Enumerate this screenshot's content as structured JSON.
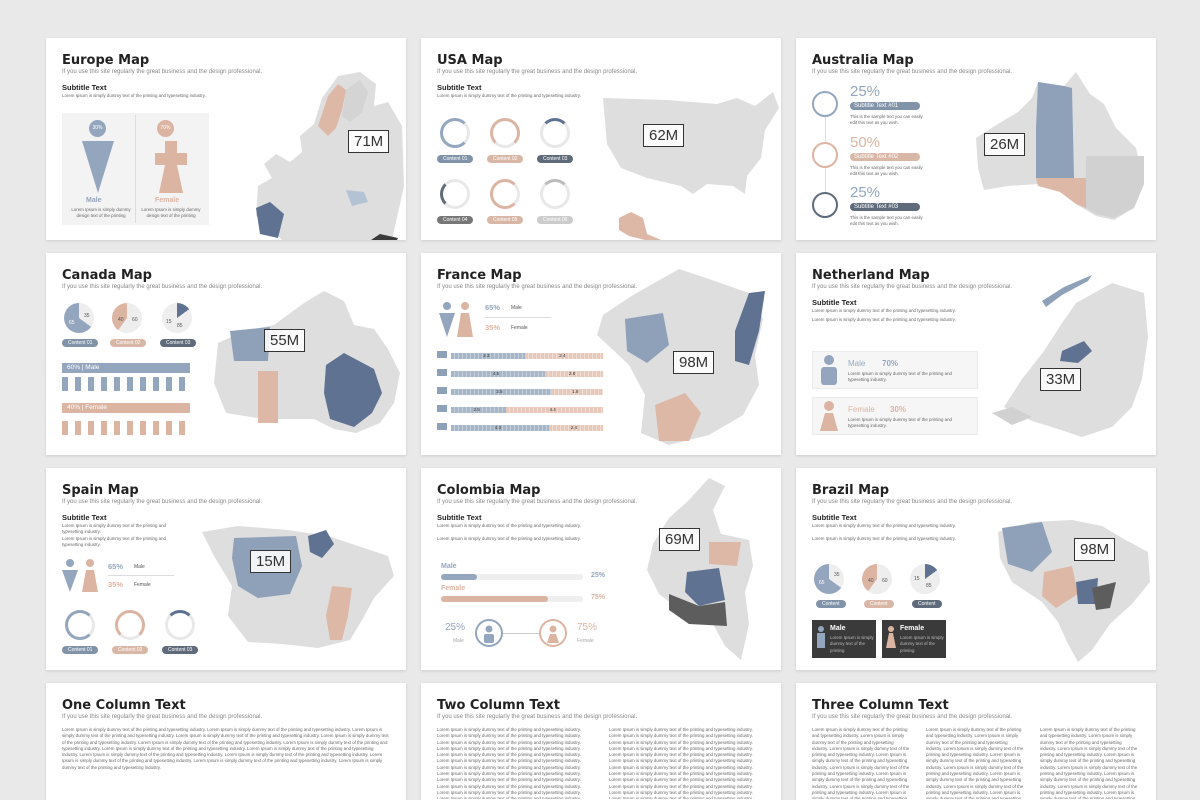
{
  "common": {
    "subtitle": "If you use this site regularly the great business and the design professional.",
    "subtitle_text": "Subtitle Text",
    "lorem": "Lorem Ipsum is simply dummy text of the printing and typesetting industry.",
    "lorem_short": "Lorem Ipsum is simply dummy text of the printing"
  },
  "colors": {
    "blue": "#8ea1b9",
    "rose": "#ddb8a6",
    "navy": "#5f7291",
    "gray": "#dedede",
    "dark": "#3a3a3a"
  },
  "slides": {
    "europe": {
      "title": "Europe Map",
      "value": "71M",
      "male_pct": "30%",
      "female_pct": "70%",
      "male": "Male",
      "female": "Female",
      "desc": "Lorem Ipsum is simply dummy design text of the printing"
    },
    "usa": {
      "title": "USA Map",
      "value": "62M",
      "labels": [
        "Content 01",
        "Content 02",
        "Content 03",
        "Content 04",
        "Content 05",
        "Content 06"
      ]
    },
    "australia": {
      "title": "Australia Map",
      "value": "26M",
      "items": [
        {
          "pct": "25%",
          "label": "Subtitle Text #01"
        },
        {
          "pct": "50%",
          "label": "Subtitle Text #02"
        },
        {
          "pct": "25%",
          "label": "Subtitle Text #03"
        }
      ],
      "note": "This is the sample text you can easily edit this text as you wish."
    },
    "canada": {
      "title": "Canada Map",
      "value": "55M",
      "pies": [
        {
          "a": "65",
          "b": "35",
          "label": "Content 01"
        },
        {
          "a": "60",
          "b": "40",
          "label": "Content 02"
        },
        {
          "a": "85",
          "b": "15",
          "label": "Content 03"
        }
      ],
      "male_row": "60% | Male",
      "female_row": "40% | Female"
    },
    "france": {
      "title": "France Map",
      "value": "98M",
      "male_pct": "65%",
      "female_pct": "35%",
      "male": "Male",
      "female": "Female",
      "bars": [
        {
          "a": "2.3",
          "b": "2.4"
        },
        {
          "a": "4.5",
          "b": "2.8"
        },
        {
          "a": "3.5",
          "b": "1.8"
        },
        {
          "a": "2.5",
          "b": "4.4"
        },
        {
          "a": "4.3",
          "b": "2.4"
        }
      ]
    },
    "netherland": {
      "title": "Netherland Map",
      "value": "33M",
      "male": "Male",
      "male_pct": "70%",
      "female": "Female",
      "female_pct": "30%"
    },
    "spain": {
      "title": "Spain Map",
      "value": "15M",
      "male_pct": "65%",
      "female_pct": "35%",
      "male": "Male",
      "female": "Female",
      "labels": [
        "Content 01",
        "Content 02",
        "Content 03"
      ]
    },
    "colombia": {
      "title": "Colombia Map",
      "value": "69M",
      "male": "Male",
      "female": "Female",
      "male_pct": "25%",
      "female_pct": "75%"
    },
    "brazil": {
      "title": "Brazil Map",
      "value": "98M",
      "pies": [
        {
          "a": "65",
          "b": "35",
          "label": "Content"
        },
        {
          "a": "40",
          "b": "60",
          "label": "Content"
        },
        {
          "a": "15",
          "b": "85",
          "label": "Content"
        }
      ],
      "male": "Male",
      "female": "Female"
    },
    "one_col": {
      "title": "One Column Text"
    },
    "two_col": {
      "title": "Two Column Text"
    },
    "three_col": {
      "title": "Three Column Text"
    }
  }
}
